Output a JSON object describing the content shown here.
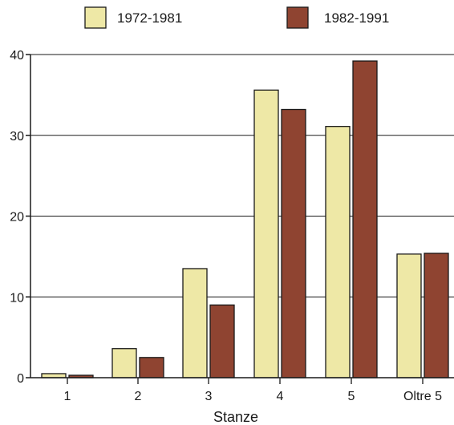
{
  "chart_data": {
    "type": "bar",
    "title": "",
    "xlabel": "Stanze",
    "ylabel": "",
    "categories": [
      "1",
      "2",
      "3",
      "4",
      "5",
      "Oltre 5"
    ],
    "series": [
      {
        "name": "1972-1981",
        "color": "#eee8a6",
        "values": [
          0.5,
          3.6,
          13.5,
          35.6,
          31.1,
          15.3
        ]
      },
      {
        "name": "1982-1991",
        "color": "#8f4431",
        "values": [
          0.3,
          2.5,
          9.0,
          33.2,
          39.2,
          15.4
        ]
      }
    ],
    "ylim": [
      0,
      40
    ],
    "yticks": [
      0,
      10,
      20,
      30,
      40
    ],
    "grid": true,
    "legend_position": "top"
  }
}
